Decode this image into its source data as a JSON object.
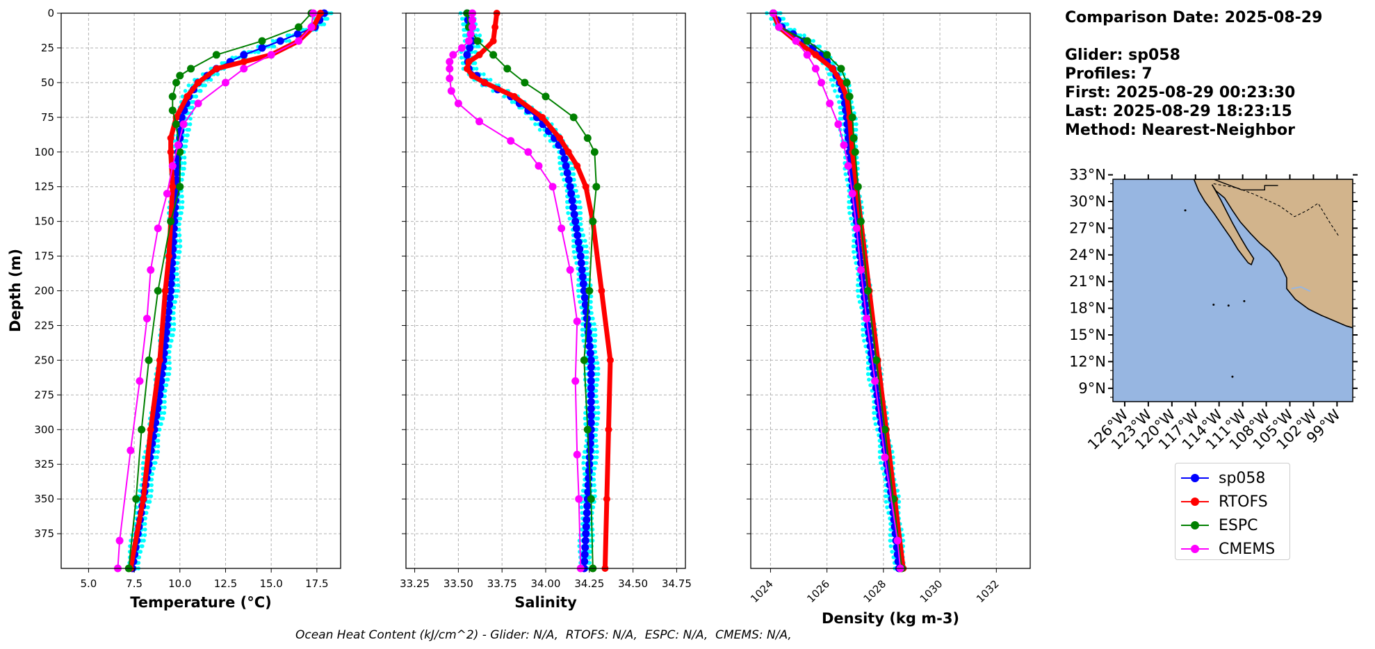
{
  "chart_data": [
    {
      "type": "line",
      "xlabel": "Temperature (°C)",
      "ylabel": "Depth (m)",
      "xlim": [
        3.5,
        18.8
      ],
      "ylim": [
        400,
        0
      ],
      "xticks": [
        "5.0",
        "7.5",
        "10.0",
        "12.5",
        "15.0",
        "17.5"
      ],
      "yticks": [
        "0",
        "25",
        "50",
        "75",
        "100",
        "125",
        "150",
        "175",
        "200",
        "225",
        "250",
        "275",
        "300",
        "325",
        "350",
        "375"
      ],
      "grid": true,
      "series": [
        {
          "name": "sp058",
          "color": "#0000ff",
          "depth": [
            0,
            10,
            20,
            30,
            40,
            50,
            60,
            75,
            90,
            100,
            125,
            150,
            175,
            200,
            225,
            250,
            275,
            300,
            325,
            350,
            375,
            400
          ],
          "values": [
            17.9,
            17.4,
            15.5,
            13.5,
            12.0,
            11.0,
            10.5,
            10.1,
            10.0,
            9.9,
            9.8,
            9.7,
            9.6,
            9.5,
            9.3,
            9.1,
            8.9,
            8.6,
            8.3,
            8.0,
            7.7,
            7.4
          ]
        },
        {
          "name": "RTOFS",
          "color": "#ff0000",
          "depth": [
            0,
            10,
            20,
            30,
            35,
            40,
            50,
            60,
            75,
            90,
            100,
            125,
            150,
            175,
            200,
            250,
            300,
            350,
            400
          ],
          "values": [
            17.7,
            17.3,
            16.5,
            15.0,
            13.5,
            12.0,
            11.0,
            10.4,
            9.8,
            9.5,
            9.5,
            9.6,
            9.5,
            9.4,
            9.2,
            8.9,
            8.4,
            8.0,
            7.3
          ]
        },
        {
          "name": "ESPC",
          "color": "#008000",
          "depth": [
            0,
            10,
            20,
            30,
            40,
            45,
            50,
            60,
            70,
            80,
            100,
            125,
            150,
            200,
            250,
            300,
            350,
            400
          ],
          "values": [
            17.2,
            16.5,
            14.5,
            12.0,
            10.6,
            10.0,
            9.8,
            9.6,
            9.6,
            9.8,
            10.0,
            10.0,
            9.5,
            8.8,
            8.3,
            7.9,
            7.6,
            7.2
          ]
        },
        {
          "name": "CMEMS",
          "color": "#ff00ff",
          "depth": [
            0,
            10,
            20,
            30,
            40,
            50,
            65,
            80,
            95,
            110,
            130,
            155,
            185,
            220,
            265,
            315,
            380,
            400
          ],
          "values": [
            17.3,
            17.2,
            16.5,
            15.0,
            13.5,
            12.5,
            11.0,
            10.2,
            9.9,
            9.6,
            9.3,
            8.8,
            8.4,
            8.2,
            7.8,
            7.3,
            6.7,
            6.6
          ]
        }
      ]
    },
    {
      "type": "line",
      "xlabel": "Salinity",
      "xlim": [
        33.2,
        34.8
      ],
      "ylim": [
        400,
        0
      ],
      "xticks": [
        "33.25",
        "33.50",
        "33.75",
        "34.00",
        "34.25",
        "34.50",
        "34.75"
      ],
      "grid": true,
      "series": [
        {
          "name": "sp058",
          "color": "#0000ff",
          "depth": [
            0,
            10,
            20,
            30,
            40,
            50,
            60,
            75,
            90,
            100,
            125,
            150,
            175,
            200,
            225,
            250,
            275,
            300,
            325,
            350,
            375,
            400
          ],
          "values": [
            33.55,
            33.56,
            33.58,
            33.55,
            33.56,
            33.65,
            33.8,
            33.95,
            34.05,
            34.1,
            34.14,
            34.17,
            34.2,
            34.22,
            34.24,
            34.26,
            34.26,
            34.26,
            34.25,
            34.24,
            34.23,
            34.22
          ]
        },
        {
          "name": "RTOFS",
          "color": "#ff0000",
          "depth": [
            0,
            10,
            20,
            30,
            35,
            40,
            45,
            50,
            60,
            75,
            90,
            100,
            110,
            125,
            150,
            200,
            250,
            300,
            350,
            400
          ],
          "values": [
            33.72,
            33.71,
            33.7,
            33.62,
            33.56,
            33.55,
            33.58,
            33.65,
            33.82,
            33.98,
            34.08,
            34.13,
            34.18,
            34.23,
            34.27,
            34.32,
            34.37,
            34.36,
            34.35,
            34.34
          ]
        },
        {
          "name": "ESPC",
          "color": "#008000",
          "depth": [
            0,
            10,
            20,
            30,
            40,
            50,
            60,
            75,
            90,
            100,
            125,
            150,
            200,
            250,
            300,
            350,
            400
          ],
          "values": [
            33.55,
            33.56,
            33.61,
            33.7,
            33.78,
            33.88,
            34.0,
            34.16,
            34.24,
            34.28,
            34.29,
            34.27,
            34.25,
            34.22,
            34.24,
            34.26,
            34.27
          ]
        },
        {
          "name": "CMEMS",
          "color": "#ff00ff",
          "depth": [
            0,
            5,
            10,
            15,
            20,
            25,
            30,
            35,
            40,
            47,
            56,
            65,
            78,
            92,
            100,
            110,
            125,
            155,
            185,
            222,
            265,
            318,
            350,
            400
          ],
          "values": [
            33.58,
            33.58,
            33.58,
            33.57,
            33.56,
            33.52,
            33.47,
            33.45,
            33.45,
            33.45,
            33.46,
            33.5,
            33.62,
            33.8,
            33.9,
            33.96,
            34.04,
            34.09,
            34.14,
            34.18,
            34.17,
            34.18,
            34.19,
            34.2
          ]
        }
      ]
    },
    {
      "type": "line",
      "xlabel": "Density (kg m-3)",
      "xlim": [
        1023.3,
        1033.2
      ],
      "ylim": [
        400,
        0
      ],
      "xticks": [
        "1024",
        "1026",
        "1028",
        "1030",
        "1032"
      ],
      "grid": true,
      "series": [
        {
          "name": "sp058",
          "color": "#0000ff",
          "depth": [
            0,
            10,
            20,
            30,
            40,
            50,
            60,
            75,
            100,
            125,
            150,
            200,
            250,
            300,
            350,
            400
          ],
          "values": [
            1024.1,
            1024.4,
            1025.2,
            1025.8,
            1026.2,
            1026.45,
            1026.6,
            1026.7,
            1026.8,
            1026.9,
            1027.05,
            1027.3,
            1027.6,
            1027.95,
            1028.3,
            1028.55
          ]
        },
        {
          "name": "RTOFS",
          "color": "#ff0000",
          "depth": [
            0,
            10,
            20,
            30,
            40,
            50,
            60,
            75,
            100,
            125,
            150,
            200,
            250,
            300,
            350,
            400
          ],
          "values": [
            1024.1,
            1024.3,
            1024.9,
            1025.6,
            1026.2,
            1026.5,
            1026.7,
            1026.8,
            1026.9,
            1027.05,
            1027.2,
            1027.5,
            1027.8,
            1028.1,
            1028.4,
            1028.7
          ]
        },
        {
          "name": "ESPC",
          "color": "#008000",
          "depth": [
            0,
            10,
            20,
            30,
            40,
            50,
            60,
            75,
            90,
            100,
            125,
            150,
            200,
            250,
            300,
            350,
            400
          ],
          "values": [
            1024.1,
            1024.3,
            1025.3,
            1026.0,
            1026.5,
            1026.7,
            1026.8,
            1026.9,
            1026.95,
            1027.0,
            1027.1,
            1027.2,
            1027.45,
            1027.75,
            1028.05,
            1028.35,
            1028.65
          ]
        },
        {
          "name": "CMEMS",
          "color": "#ff00ff",
          "depth": [
            0,
            10,
            20,
            30,
            40,
            50,
            65,
            80,
            95,
            110,
            130,
            155,
            185,
            220,
            265,
            320,
            380,
            400
          ],
          "values": [
            1024.1,
            1024.3,
            1024.9,
            1025.3,
            1025.6,
            1025.8,
            1026.1,
            1026.4,
            1026.6,
            1026.75,
            1026.9,
            1027.05,
            1027.2,
            1027.4,
            1027.7,
            1028.05,
            1028.5,
            1028.6
          ]
        }
      ]
    },
    {
      "type": "map",
      "lat_ticks": [
        "33°N",
        "30°N",
        "27°N",
        "24°N",
        "21°N",
        "18°N",
        "15°N",
        "12°N",
        "9°N"
      ],
      "lon_ticks": [
        "126°W",
        "123°W",
        "120°W",
        "117°W",
        "114°W",
        "111°W",
        "108°W",
        "105°W",
        "102°W",
        "99°W"
      ],
      "ocean_color": "#97b6e1",
      "land_color": "#d2b48c"
    }
  ],
  "info": {
    "comparison_date": "Comparison Date: 2025-08-29",
    "glider": "Glider: sp058",
    "profiles": "Profiles: 7",
    "first": "First: 2025-08-29 00:23:30",
    "last": "Last: 2025-08-29 18:23:15",
    "method": "Method: Nearest-Neighbor"
  },
  "legend": [
    {
      "label": "sp058",
      "color": "#0000ff"
    },
    {
      "label": "RTOFS",
      "color": "#ff0000"
    },
    {
      "label": "ESPC",
      "color": "#008000"
    },
    {
      "label": "CMEMS",
      "color": "#ff00ff"
    }
  ],
  "footer": "Ocean Heat Content (kJ/cm^2) - Glider: N/A,  RTOFS: N/A,  ESPC: N/A,  CMEMS: N/A,",
  "colors": {
    "glider_profiles": "#00ffff"
  }
}
